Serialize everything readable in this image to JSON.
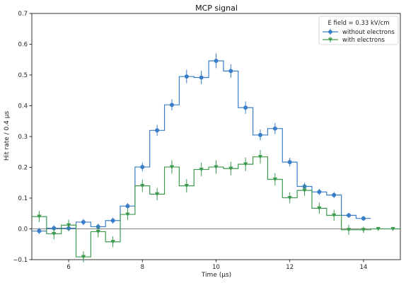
{
  "chart_data": {
    "type": "step",
    "title": "MCP signal",
    "xlabel": "Time (μs)",
    "ylabel": "Hit rate / 0.4 μs",
    "xlim": [
      5.0,
      15.0
    ],
    "ylim": [
      -0.1,
      0.7
    ],
    "x_ticks": [
      6,
      8,
      10,
      12,
      14
    ],
    "y_ticks": [
      -0.1,
      0.0,
      0.1,
      0.2,
      0.3,
      0.4,
      0.5,
      0.6,
      0.7
    ],
    "x_tick_labels": [
      "6",
      "8",
      "10",
      "12",
      "14"
    ],
    "y_tick_labels": [
      "−0.1",
      "0.0",
      "0.1",
      "0.2",
      "0.3",
      "0.4",
      "0.5",
      "0.6",
      "0.7"
    ],
    "grid": false,
    "legend_position": "top-right",
    "legend_title": "E field = 0.33 kV/cm",
    "bin_width": 0.4,
    "x": [
      5.2,
      5.6,
      6.0,
      6.4,
      6.8,
      7.2,
      7.6,
      8.0,
      8.4,
      8.8,
      9.2,
      9.6,
      10.0,
      10.4,
      10.8,
      11.2,
      11.6,
      12.0,
      12.4,
      12.8,
      13.2,
      13.6,
      14.0,
      14.4,
      14.8
    ],
    "series": [
      {
        "name": "without electrons",
        "color": "#3a7dc9",
        "marker": "circle",
        "values": [
          -0.007,
          0.002,
          0.002,
          0.022,
          0.007,
          0.027,
          0.074,
          0.201,
          0.32,
          0.403,
          0.495,
          0.492,
          0.546,
          0.513,
          0.394,
          0.305,
          0.326,
          0.217,
          0.138,
          0.12,
          0.11,
          0.044,
          0.034,
          null,
          null
        ],
        "errors": [
          0.01,
          0.01,
          0.01,
          0.01,
          0.01,
          0.01,
          0.01,
          0.014,
          0.018,
          0.018,
          0.022,
          0.022,
          0.024,
          0.022,
          0.02,
          0.018,
          0.018,
          0.014,
          0.012,
          0.01,
          0.01,
          0.008,
          0.008,
          null,
          null
        ]
      },
      {
        "name": "with electrons",
        "color": "#3c9a4e",
        "marker": "triangle-down",
        "values": [
          0.04,
          -0.016,
          0.012,
          -0.091,
          -0.009,
          -0.042,
          0.047,
          0.14,
          0.113,
          0.201,
          0.14,
          0.193,
          0.201,
          0.196,
          0.21,
          0.234,
          0.161,
          0.101,
          0.125,
          0.067,
          0.044,
          -0.003,
          -0.003,
          0.0,
          0.0
        ],
        "errors": [
          0.018,
          0.018,
          0.018,
          0.018,
          0.018,
          0.018,
          0.018,
          0.02,
          0.02,
          0.022,
          0.022,
          0.022,
          0.022,
          0.022,
          0.022,
          0.022,
          0.02,
          0.018,
          0.018,
          0.018,
          0.018,
          0.016,
          0.01,
          0.004,
          0.004
        ]
      }
    ]
  }
}
